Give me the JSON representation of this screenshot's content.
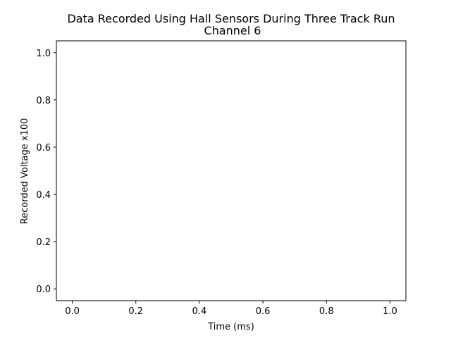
{
  "chart_data": {
    "type": "line",
    "title": "Data Recorded Using Hall Sensors During Three Track Run",
    "subtitle": "Channel 6",
    "xlabel": "Time (ms)",
    "ylabel": "Recorded Voltage x100",
    "xlim": [
      -0.05,
      1.05
    ],
    "ylim": [
      -0.05,
      1.05
    ],
    "x_ticks": [
      "0.0",
      "0.2",
      "0.4",
      "0.6",
      "0.8",
      "1.0"
    ],
    "y_ticks": [
      "0.0",
      "0.2",
      "0.4",
      "0.6",
      "0.8",
      "1.0"
    ],
    "series": [],
    "grid": false
  }
}
